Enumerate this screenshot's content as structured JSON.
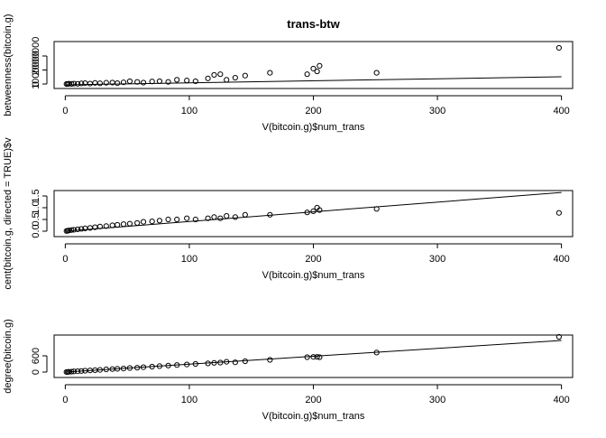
{
  "chart_data": [
    {
      "type": "scatter",
      "title": "trans-btw",
      "x_label": "V(bitcoin.g)$num_trans",
      "y_label": "betweenness(bitcoin.g)",
      "xlim": [
        -9,
        409
      ],
      "xticks": [
        0,
        100,
        200,
        300,
        400
      ],
      "ylim": [
        -320000,
        3030000
      ],
      "yticks": [
        0,
        1000000,
        2000000
      ],
      "points": {
        "x": [
          1,
          2,
          3,
          5,
          7,
          10,
          13,
          16,
          20,
          24,
          28,
          33,
          38,
          42,
          47,
          52,
          58,
          63,
          70,
          76,
          83,
          90,
          98,
          105,
          115,
          120,
          125,
          130,
          137,
          145,
          165,
          195,
          200,
          203,
          205,
          251,
          398
        ],
        "y": [
          0,
          5000,
          20000,
          10000,
          30000,
          15000,
          40000,
          60000,
          30000,
          80000,
          50000,
          90000,
          100000,
          60000,
          120000,
          200000,
          150000,
          100000,
          180000,
          200000,
          150000,
          300000,
          250000,
          200000,
          400000,
          650000,
          700000,
          300000,
          450000,
          600000,
          800000,
          700000,
          1100000,
          900000,
          1300000,
          800000,
          2580000
        ]
      },
      "fit_line": {
        "x": [
          0,
          400
        ],
        "y": [
          -60000,
          520000
        ]
      }
    },
    {
      "type": "scatter",
      "x_label": "V(bitcoin.g)$num_trans",
      "y_label": "cent(bitcoin.g, directed = TRUE)$v",
      "xlim": [
        -9,
        409
      ],
      "xticks": [
        0,
        100,
        200,
        300,
        400
      ],
      "ylim": [
        -0.23,
        1.73
      ],
      "yticks": [
        {
          "value": 0,
          "label": "0.0"
        },
        0.5,
        {
          "value": 1,
          "label": "1.0"
        },
        1.5
      ],
      "points": {
        "x": [
          1,
          2,
          3,
          5,
          7,
          10,
          13,
          16,
          20,
          24,
          28,
          33,
          38,
          42,
          47,
          52,
          58,
          63,
          70,
          76,
          83,
          90,
          98,
          105,
          115,
          120,
          125,
          130,
          137,
          145,
          165,
          195,
          200,
          203,
          205,
          251,
          398
        ],
        "y": [
          0.01,
          0.02,
          0.03,
          0.05,
          0.06,
          0.08,
          0.1,
          0.12,
          0.14,
          0.17,
          0.2,
          0.22,
          0.25,
          0.27,
          0.3,
          0.32,
          0.35,
          0.4,
          0.42,
          0.45,
          0.5,
          0.5,
          0.55,
          0.5,
          0.55,
          0.6,
          0.55,
          0.65,
          0.6,
          0.7,
          0.7,
          0.8,
          0.85,
          1.0,
          0.9,
          0.95,
          0.78
        ]
      },
      "fit_line": {
        "x": [
          0,
          400
        ],
        "y": [
          0,
          1.65
        ]
      }
    },
    {
      "type": "scatter",
      "x_label": "V(bitcoin.g)$num_trans",
      "y_label": "degree(bitcoin.g)",
      "xlim": [
        -9,
        409
      ],
      "xticks": [
        0,
        100,
        200,
        300,
        400
      ],
      "ylim": [
        -200,
        1367
      ],
      "yticks": [
        0,
        600
      ],
      "points": {
        "x": [
          1,
          2,
          3,
          5,
          7,
          10,
          13,
          16,
          20,
          24,
          28,
          33,
          38,
          42,
          47,
          52,
          58,
          63,
          70,
          76,
          83,
          90,
          98,
          105,
          115,
          120,
          125,
          130,
          137,
          145,
          165,
          195,
          200,
          203,
          205,
          251,
          398
        ],
        "y": [
          2,
          5,
          10,
          15,
          25,
          30,
          40,
          50,
          60,
          70,
          80,
          100,
          110,
          120,
          130,
          150,
          160,
          180,
          200,
          220,
          240,
          260,
          280,
          300,
          320,
          340,
          350,
          380,
          360,
          400,
          450,
          550,
          560,
          560,
          550,
          720,
          1300
        ]
      },
      "fit_line": {
        "x": [
          0,
          400
        ],
        "y": [
          0,
          1167
        ]
      }
    }
  ]
}
